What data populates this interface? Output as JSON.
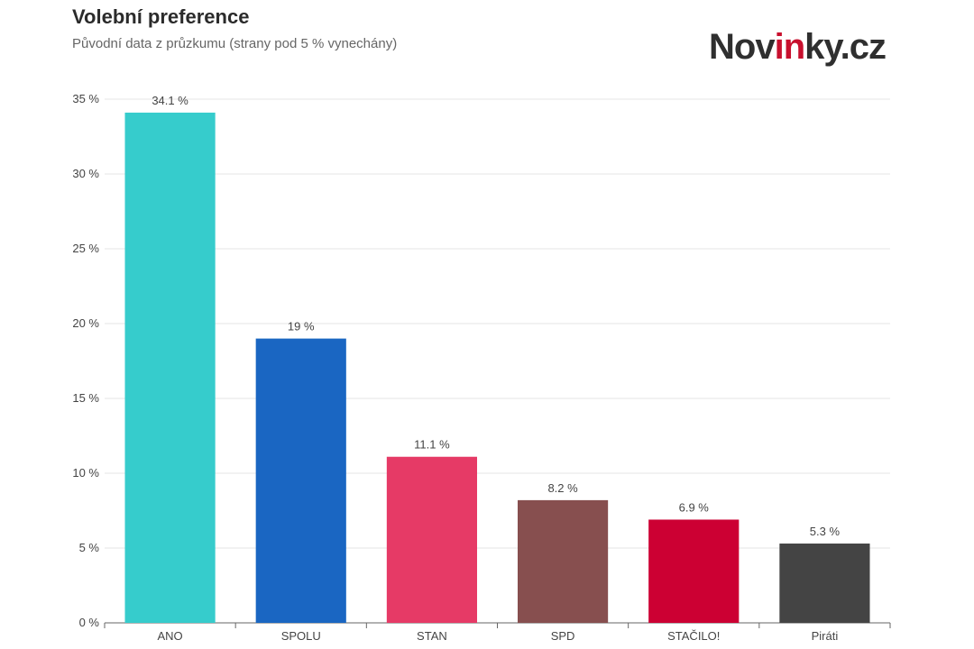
{
  "header": {
    "logo": {
      "part1": "Nov",
      "part2": "in",
      "part3": "ky.cz"
    }
  },
  "colors": {
    "grid": "#e6e6e6",
    "axis": "#666666",
    "tick_label": "#444444",
    "value_label": "#444444"
  },
  "chart_data": {
    "type": "bar",
    "title": "Volební preference",
    "subtitle": "Původní data z průzkumu (strany pod 5 % vynechány)",
    "categories": [
      "ANO",
      "SPOLU",
      "STAN",
      "SPD",
      "STAČILO!",
      "Piráti"
    ],
    "values": [
      34.1,
      19,
      11.1,
      8.2,
      6.9,
      5.3
    ],
    "value_labels": [
      "34.1 %",
      "19 %",
      "11.1 %",
      "8.2 %",
      "6.9 %",
      "5.3 %"
    ],
    "bar_colors": [
      "#36cccc",
      "#1a66c2",
      "#e63a66",
      "#874f4f",
      "#cc0033",
      "#444444"
    ],
    "yticks": [
      0,
      5,
      10,
      15,
      20,
      25,
      30,
      35
    ],
    "ytick_labels": [
      "0 %",
      "5 %",
      "10 %",
      "15 %",
      "20 %",
      "25 %",
      "30 %",
      "35 %"
    ],
    "ylim": [
      0,
      35
    ],
    "grid": true,
    "xlabel": "",
    "ylabel": ""
  }
}
